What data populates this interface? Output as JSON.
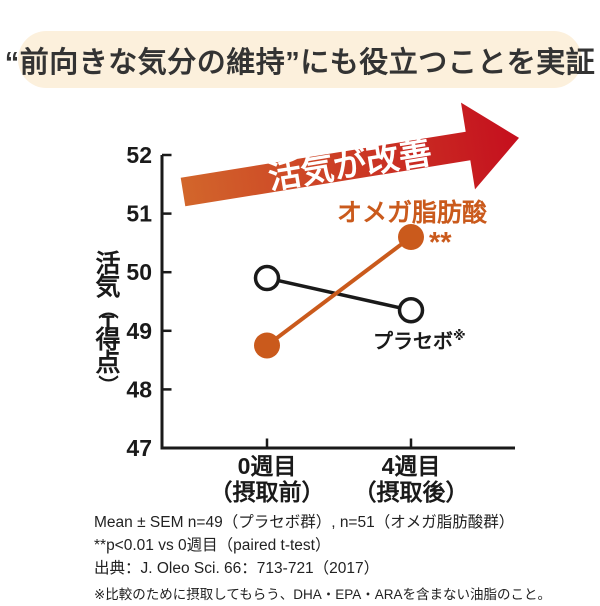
{
  "page": {
    "bg": "#ffffff"
  },
  "header": {
    "title": "“前向きな気分の維持”にも役立つことを実証",
    "bg": "#fcf0dc",
    "text_color": "#333333"
  },
  "arrow": {
    "label": "活気が改善",
    "gradient": [
      "#d2662b",
      "#c50f1e"
    ],
    "text_color": "#ffffff"
  },
  "chart_data": {
    "type": "line",
    "categories": [
      [
        "0週目",
        "（摂取前）"
      ],
      [
        "4週目",
        "（摂取後）"
      ]
    ],
    "series": [
      {
        "name": "オメガ脂肪酸",
        "values": [
          48.75,
          50.6
        ],
        "color": "#ca5a1c",
        "marker": "filled-circle",
        "annotation": "**"
      },
      {
        "name": "プラセボ",
        "values": [
          49.9,
          49.35
        ],
        "color": "#1a1a1a",
        "marker": "open-circle",
        "annotation": "※"
      }
    ],
    "ylabel": "活気（T得点）",
    "ylim": [
      47,
      52
    ],
    "yticks": [
      52,
      51,
      50,
      49,
      48,
      47
    ],
    "grid": false,
    "legend": "inline-labels",
    "axis_color": "#1a1a1a"
  },
  "footnotes": [
    "Mean ± SEM n=49（プラセボ群）, n=51（オメガ脂肪酸群）",
    "**p<0.01 vs 0週目（paired t-test）",
    "出典：J. Oleo Sci. 66：713-721（2017）",
    "※比較のために摂取してもらう、DHA・EPA・ARAを含まない油脂のこと。"
  ]
}
